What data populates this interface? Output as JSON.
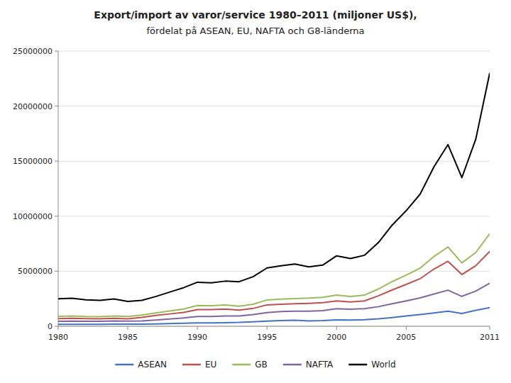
{
  "chart_data": {
    "type": "line",
    "title": "Export/import av varor/service 1980–2011 (miljoner US$),",
    "subtitle": "fördelat på ASEAN, EU, NAFTA och G8-länderna",
    "x": [
      1980,
      1981,
      1982,
      1983,
      1984,
      1985,
      1986,
      1987,
      1988,
      1989,
      1990,
      1991,
      1992,
      1993,
      1994,
      1995,
      1996,
      1997,
      1998,
      1999,
      2000,
      2001,
      2002,
      2003,
      2004,
      2005,
      2006,
      2007,
      2008,
      2009,
      2010,
      2011
    ],
    "series": [
      {
        "name": "ASEAN",
        "color": "#4472c4",
        "values": [
          180000,
          185000,
          175000,
          180000,
          200000,
          190000,
          190000,
          210000,
          240000,
          270000,
          300000,
          310000,
          330000,
          350000,
          400000,
          470000,
          510000,
          540000,
          490000,
          510000,
          580000,
          560000,
          590000,
          670000,
          790000,
          930000,
          1060000,
          1210000,
          1370000,
          1160000,
          1450000,
          1700000
        ]
      },
      {
        "name": "EU",
        "color": "#c0504d",
        "values": [
          700000,
          730000,
          690000,
          670000,
          720000,
          680000,
          800000,
          980000,
          1120000,
          1250000,
          1520000,
          1510000,
          1560000,
          1470000,
          1620000,
          1940000,
          2000000,
          2040000,
          2080000,
          2140000,
          2300000,
          2200000,
          2300000,
          2760000,
          3300000,
          3800000,
          4320000,
          5200000,
          5900000,
          4700000,
          5500000,
          6800000
        ]
      },
      {
        "name": "GB",
        "color": "#9bbb59",
        "values": [
          900000,
          930000,
          880000,
          870000,
          940000,
          880000,
          1010000,
          1210000,
          1390000,
          1560000,
          1890000,
          1870000,
          1930000,
          1820000,
          2000000,
          2390000,
          2470000,
          2520000,
          2560000,
          2630000,
          2830000,
          2710000,
          2830000,
          3380000,
          4060000,
          4650000,
          5280000,
          6340000,
          7200000,
          5760000,
          6700000,
          8400000
        ]
      },
      {
        "name": "NAFTA",
        "color": "#8064a2",
        "values": [
          450000,
          470000,
          450000,
          450000,
          490000,
          470000,
          490000,
          570000,
          660000,
          750000,
          880000,
          880000,
          930000,
          930000,
          1060000,
          1240000,
          1330000,
          1370000,
          1370000,
          1420000,
          1600000,
          1550000,
          1600000,
          1780000,
          2040000,
          2310000,
          2580000,
          2930000,
          3280000,
          2720000,
          3200000,
          3900000
        ]
      },
      {
        "name": "World",
        "color": "#000000",
        "values": [
          2500000,
          2540000,
          2400000,
          2350000,
          2480000,
          2250000,
          2350000,
          2700000,
          3100000,
          3500000,
          4000000,
          3950000,
          4100000,
          4050000,
          4500000,
          5300000,
          5500000,
          5650000,
          5400000,
          5550000,
          6400000,
          6150000,
          6450000,
          7600000,
          9200000,
          10500000,
          12000000,
          14500000,
          16500000,
          13500000,
          17000000,
          23000000
        ]
      }
    ],
    "xlim": [
      1980,
      2011
    ],
    "xticks": [
      1980,
      1985,
      1990,
      1995,
      2000,
      2005,
      2011
    ],
    "ylim": [
      0,
      25000000
    ],
    "yticks": [
      0,
      5000000,
      10000000,
      15000000,
      20000000,
      25000000
    ],
    "grid": true,
    "legend": "bottom"
  }
}
